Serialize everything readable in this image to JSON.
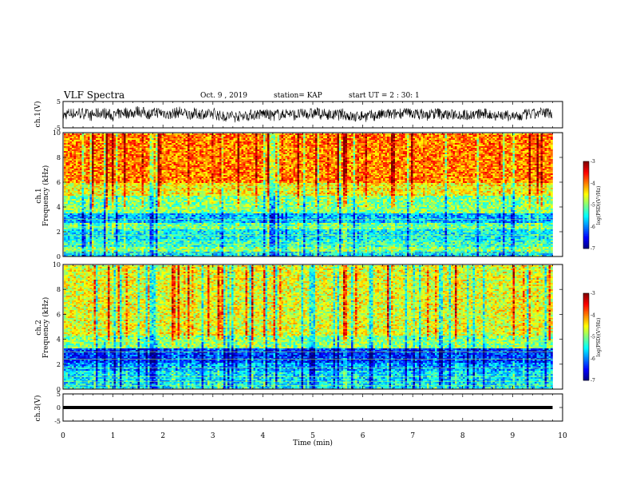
{
  "header": {
    "title": "VLF Spectra",
    "date": "Oct. 9 , 2019",
    "station": "station= KAP",
    "start": "start UT = 2 : 30: 1"
  },
  "chart_data": [
    {
      "type": "line",
      "ylabel": "ch.1(V)",
      "ylim": [
        -5,
        5
      ],
      "yticks": [
        "5",
        "-5"
      ],
      "xlim": [
        0,
        10
      ],
      "description_series": "waveform noise around 0 V between about -3 and 3 V, ending at 9.8 min"
    },
    {
      "type": "heatmap",
      "ylabel_top": "ch.1",
      "ylabel": "Frequency (kHz)",
      "ylim": [
        0,
        10
      ],
      "yticks": [
        "0",
        "2",
        "4",
        "6",
        "8",
        "10"
      ],
      "xlim": [
        0,
        10
      ],
      "data_end": 9.8,
      "colorbar": {
        "label": "log(PSD)(V²/Hz)",
        "range": [
          -7,
          -3
        ],
        "ticks": [
          "-3",
          "-4",
          "-5",
          "-6",
          "-7"
        ]
      },
      "bands": [
        {
          "from": 0,
          "to": 0.4,
          "level": -5.6
        },
        {
          "from": 0.4,
          "to": 0.8,
          "level": -5.0
        },
        {
          "from": 0.8,
          "to": 1.3,
          "level": -5.3
        },
        {
          "from": 1.3,
          "to": 2.2,
          "level": -5.5
        },
        {
          "from": 2.2,
          "to": 2.8,
          "level": -5.1
        },
        {
          "from": 2.8,
          "to": 3.6,
          "level": -5.8
        },
        {
          "from": 3.6,
          "to": 5.0,
          "level": -5.0
        },
        {
          "from": 5.0,
          "to": 6.0,
          "level": -4.5
        },
        {
          "from": 6.0,
          "to": 10.0,
          "level": -4.0
        }
      ]
    },
    {
      "type": "heatmap",
      "ylabel_top": "ch.2",
      "ylabel": "Frequency (kHz)",
      "ylim": [
        0,
        10
      ],
      "yticks": [
        "0",
        "2",
        "4",
        "6",
        "8",
        "10"
      ],
      "xlim": [
        0,
        10
      ],
      "data_end": 9.8,
      "colorbar": {
        "label": "log(PSD)(V²/Hz)",
        "range": [
          -7,
          -3
        ],
        "ticks": [
          "-3",
          "-4",
          "-5",
          "-6",
          "-7"
        ]
      },
      "bands": [
        {
          "from": 0,
          "to": 0.5,
          "level": -5.5
        },
        {
          "from": 0.5,
          "to": 1.5,
          "level": -5.6
        },
        {
          "from": 1.5,
          "to": 2.2,
          "level": -5.9
        },
        {
          "from": 2.2,
          "to": 3.3,
          "level": -6.3
        },
        {
          "from": 3.3,
          "to": 4.3,
          "level": -5.0
        },
        {
          "from": 4.3,
          "to": 10.0,
          "level": -4.6
        }
      ]
    },
    {
      "type": "line",
      "ylabel": "ch.3(V)",
      "ylim": [
        -5,
        5
      ],
      "yticks": [
        "5",
        "0",
        "-5"
      ],
      "xlim": [
        0,
        10
      ],
      "constant_value": 0,
      "xlabel": "Time (min)",
      "xticks": [
        "0",
        "1",
        "2",
        "3",
        "4",
        "5",
        "6",
        "7",
        "8",
        "9",
        "10"
      ]
    }
  ]
}
